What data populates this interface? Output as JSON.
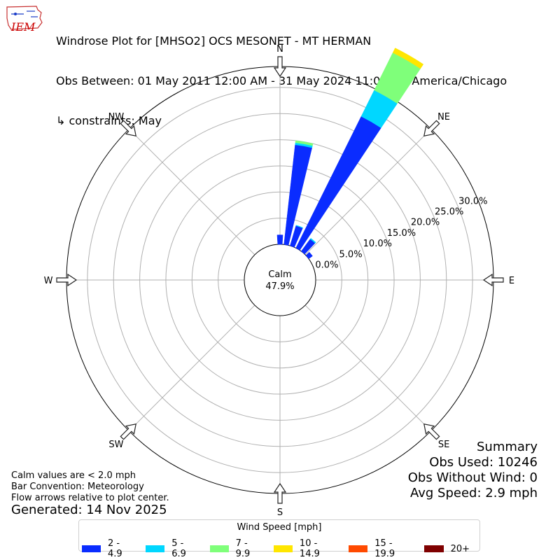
{
  "header": {
    "title": "Windrose Plot for [MHSO2] OCS MESONET - MT HERMAN",
    "obs_between": "Obs Between: 01 May 2011 12:00 AM - 31 May 2024 11:00 AM America/Chicago",
    "constraints": "↳ constraints: May"
  },
  "logo": {
    "text": "IEM",
    "color": "#cc0000"
  },
  "notes": {
    "calm": "Calm values are < 2.0 mph",
    "convention": "Bar Convention: Meteorology",
    "arrows": "Flow arrows relative to plot center.",
    "generated": "Generated: 14 Nov 2025"
  },
  "summary": {
    "title": "Summary",
    "obs_used": "Obs Used: 10246",
    "obs_without_wind": "Obs Without Wind: 0",
    "avg_speed": "Avg Speed: 2.9 mph"
  },
  "legend": {
    "title": "Wind Speed [mph]",
    "items": [
      {
        "label": "2 - 4.9",
        "color": "#0a2cff"
      },
      {
        "label": "5 - 6.9",
        "color": "#00d7ff"
      },
      {
        "label": "7 - 9.9",
        "color": "#7fff7a"
      },
      {
        "label": "10 - 14.9",
        "color": "#ffe600"
      },
      {
        "label": "15 - 19.9",
        "color": "#ff4a00"
      },
      {
        "label": "20+",
        "color": "#7f0000"
      }
    ]
  },
  "chart_data": {
    "type": "windrose",
    "calm_label": "Calm",
    "calm_value": "47.9%",
    "radial_ticks": [
      "0.0%",
      "5.0%",
      "10.0%",
      "15.0%",
      "20.0%",
      "25.0%",
      "30.0%"
    ],
    "radial_max": 34,
    "directions": [
      "N",
      "NE",
      "E",
      "SE",
      "S",
      "SW",
      "W",
      "NW"
    ],
    "bins": [
      "2 - 4.9",
      "5 - 6.9",
      "7 - 9.9",
      "10 - 14.9",
      "15 - 19.9",
      "20+"
    ],
    "sectors": [
      {
        "dir": 0,
        "values": [
          1.8,
          0,
          0,
          0,
          0,
          0
        ]
      },
      {
        "dir": 10,
        "values": [
          19.2,
          0.4,
          0.4,
          0,
          0,
          0
        ]
      },
      {
        "dir": 20,
        "values": [
          4.0,
          0.1,
          0,
          0,
          0,
          0
        ]
      },
      {
        "dir": 30,
        "values": [
          28.1,
          5.6,
          8.0,
          1.0,
          0,
          0
        ]
      },
      {
        "dir": 40,
        "values": [
          2.9,
          0.2,
          0,
          0,
          0,
          0
        ]
      },
      {
        "dir": 50,
        "values": [
          0.9,
          0,
          0,
          0,
          0,
          0
        ]
      }
    ]
  }
}
